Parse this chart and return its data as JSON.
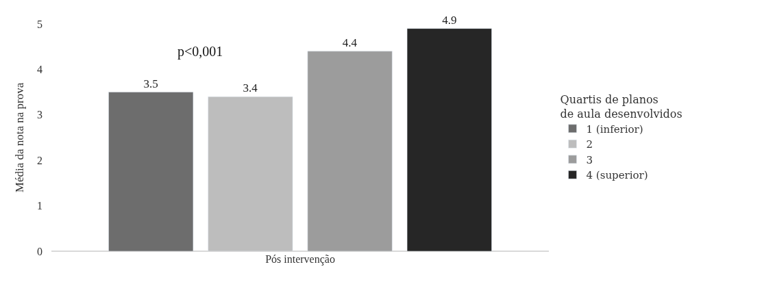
{
  "chart_data": {
    "type": "bar",
    "ylabel": "Média da nota na prova",
    "xlabel": "Pós intervenção",
    "legend_title": "Quartis de planos\nde aula desenvolvidos",
    "categories": [
      null
    ],
    "series": [
      {
        "name": "1 (inferior)",
        "color": "#6d6d6d",
        "values": [
          3.5
        ]
      },
      {
        "name": "2",
        "color": "#bdbdbd",
        "values": [
          3.4
        ]
      },
      {
        "name": "3",
        "color": "#9c9c9c",
        "values": [
          4.4
        ]
      },
      {
        "name": "4 (superior)",
        "color": "#262626",
        "values": [
          4.9
        ]
      }
    ],
    "ylim": [
      0,
      5
    ],
    "yticks": [
      0,
      1,
      2,
      3,
      4,
      5
    ],
    "data_labels": true,
    "legend": "right",
    "annotations": [
      "p<0,001"
    ]
  }
}
